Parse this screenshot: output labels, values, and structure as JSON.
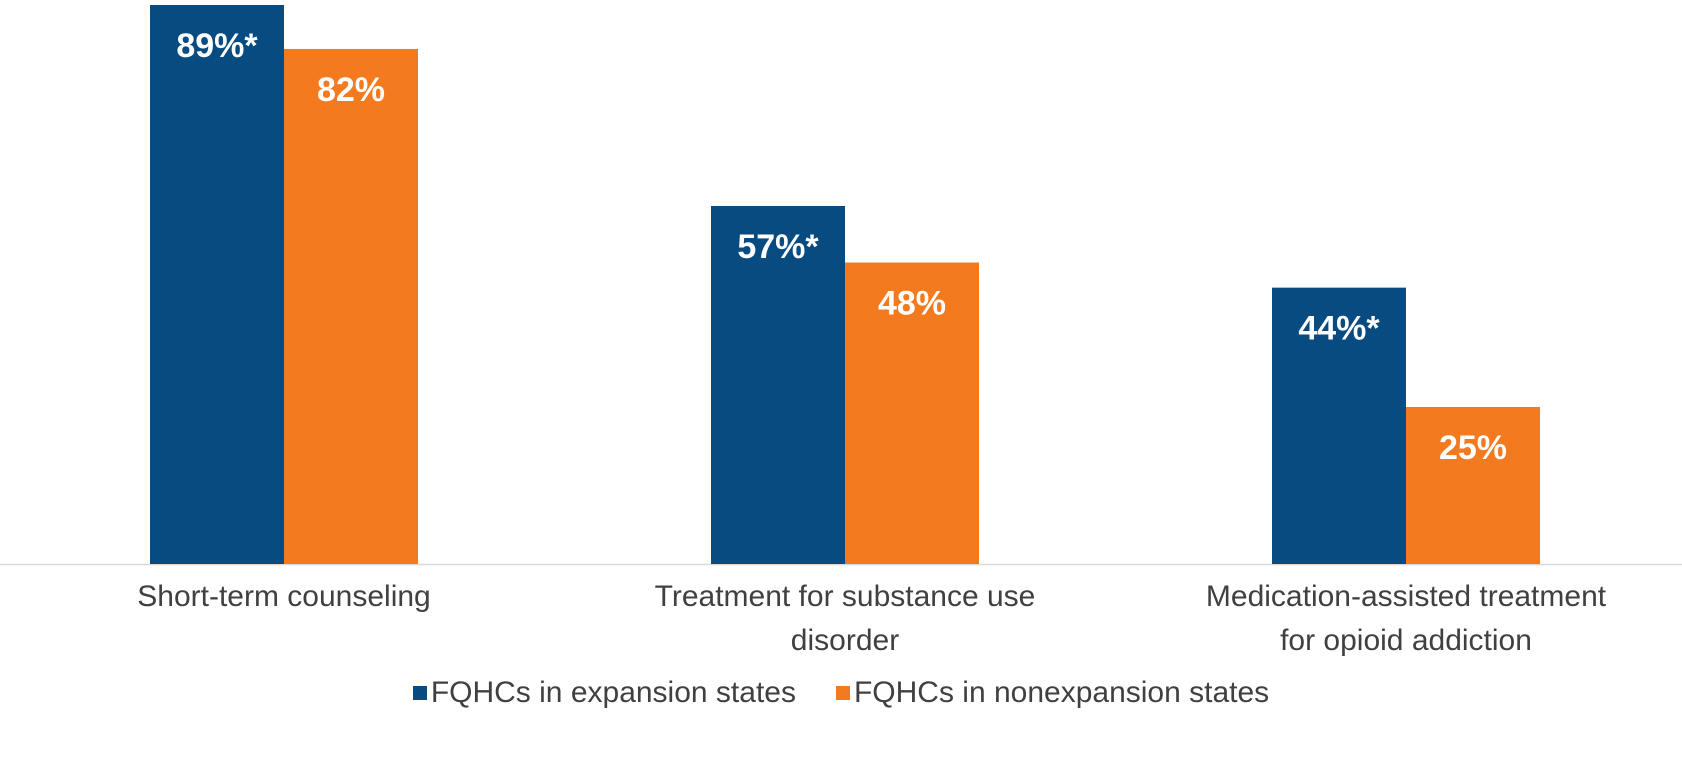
{
  "chart_data": {
    "type": "bar",
    "categories": [
      [
        "Short-term counseling"
      ],
      [
        "Treatment for substance use",
        "disorder"
      ],
      [
        "Medication-assisted treatment",
        "for opioid addiction"
      ]
    ],
    "series": [
      {
        "name": "FQHCs in expansion states",
        "values": [
          89,
          57,
          44
        ],
        "labels": [
          "89%*",
          "57%*",
          "44%*"
        ],
        "color": "#084B80"
      },
      {
        "name": "FQHCs in nonexpansion states",
        "values": [
          82,
          48,
          25
        ],
        "labels": [
          "82%",
          "48%",
          "25%"
        ],
        "color": "#F47A20"
      }
    ],
    "ylim": [
      0,
      89
    ],
    "grid": false,
    "legend_position": "bottom"
  }
}
